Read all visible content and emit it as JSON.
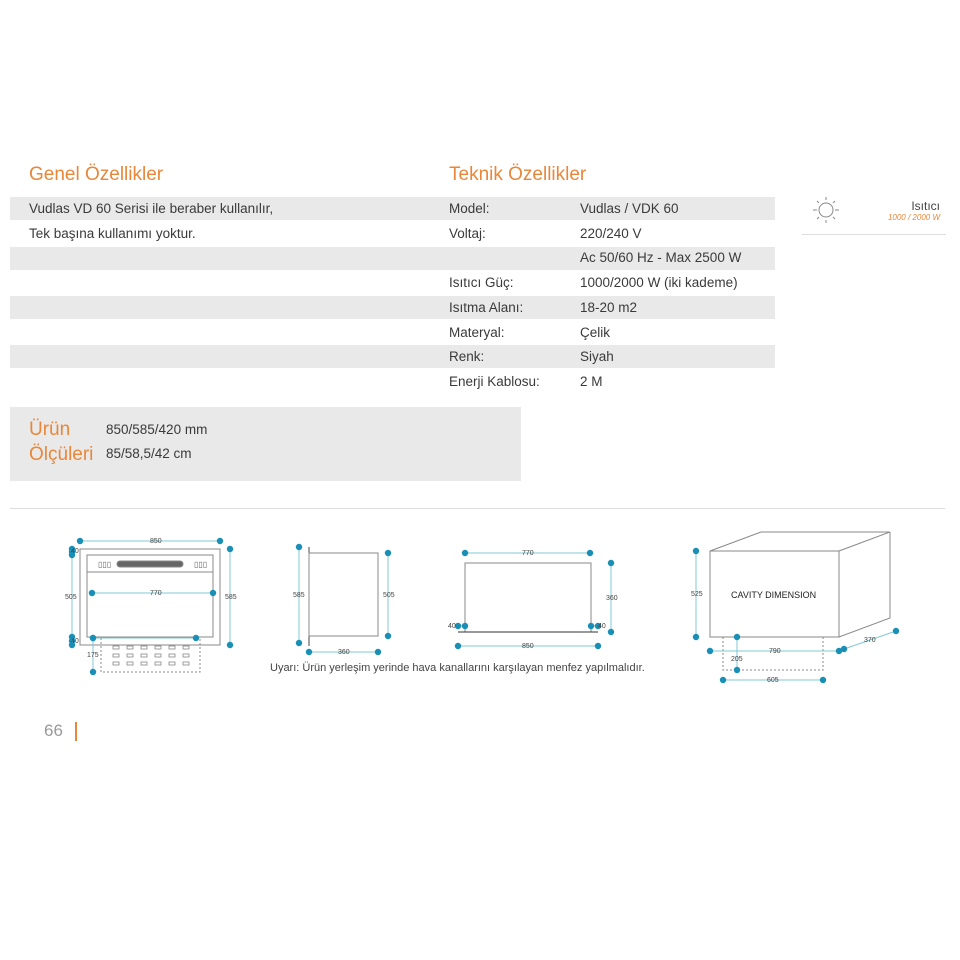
{
  "colors": {
    "accent": "#e8873a",
    "dimension_line": "#7fc8d6",
    "dimension_dot": "#1a8fb5",
    "stripe": "#e9e9e9"
  },
  "general": {
    "title": "Genel Özellikler",
    "lines": [
      "Vudlas VD 60 Serisi ile beraber kullanılır,",
      "Tek başına kullanımı yoktur."
    ]
  },
  "technical": {
    "title": "Teknik Özellikler",
    "rows": [
      {
        "label": "Model:",
        "value": "Vudlas / VDK 60"
      },
      {
        "label": "Voltaj:",
        "value": "220/240 V"
      },
      {
        "label": "",
        "value": "Ac 50/60 Hz - Max 2500 W"
      },
      {
        "label": "Isıtıcı Güç:",
        "value": "1000/2000 W (iki kademe)"
      },
      {
        "label": "Isıtma Alanı:",
        "value": "18-20 m2"
      },
      {
        "label": "Materyal:",
        "value": "Çelik"
      },
      {
        "label": "Renk:",
        "value": "Siyah"
      },
      {
        "label": "Enerji Kablosu:",
        "value": "2 M"
      }
    ]
  },
  "heater_badge": {
    "icon": "sun-icon",
    "title": "Isıtıcı",
    "subtitle": "1000 / 2000 W"
  },
  "product_dimensions": {
    "title_line1": "Ürün",
    "title_line2": "Ölçüleri",
    "mm": "850/585/420 mm",
    "cm": "85/58,5/42 cm"
  },
  "drawings": {
    "front": {
      "width": "850",
      "inner_width": "770",
      "height_left": "505",
      "height_right": "585",
      "top_offset": "40",
      "bottom_offset": "40",
      "vent_depth": "175"
    },
    "side": {
      "height_left": "585",
      "height_right": "505",
      "depth": "360"
    },
    "top": {
      "inner_width": "770",
      "outer_width": "850",
      "depth": "360",
      "left_offset": "40",
      "right_offset": "40"
    },
    "cavity": {
      "label": "CAVITY DIMENSION",
      "height": "525",
      "width": "790",
      "depth": "370",
      "vent_depth": "205",
      "vent_width": "605"
    }
  },
  "warning": "Uyarı: Ürün yerleşim yerinde hava kanallarını karşılayan menfez yapılmalıdır.",
  "page_number": "66"
}
